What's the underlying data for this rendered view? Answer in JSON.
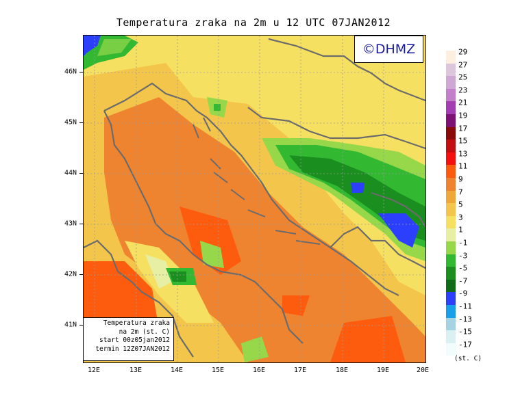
{
  "title": "Temperatura zraka na 2m u 12 UTC 07JAN2012",
  "logo_text": "©DHMZ",
  "info_box": {
    "line1": "Temperatura zraka",
    "line2": "na 2m (st. C)",
    "line3": "start 00z05jan2012",
    "line4": "termin 12Z07JAN2012"
  },
  "axes": {
    "lat_labels": [
      "46N",
      "45N",
      "44N",
      "43N",
      "42N",
      "41N"
    ],
    "lon_labels": [
      "12E",
      "13E",
      "14E",
      "15E",
      "16E",
      "17E",
      "18E",
      "19E",
      "20E"
    ]
  },
  "legend": {
    "labels": [
      "29",
      "27",
      "25",
      "23",
      "21",
      "19",
      "17",
      "15",
      "13",
      "11",
      "9",
      "7",
      "5",
      "3",
      "1",
      "-1",
      "-3",
      "-5",
      "-7",
      "-9",
      "-11",
      "-13",
      "-15",
      "-17"
    ],
    "colors": [
      "#fdeee0",
      "#dcc6dc",
      "#cfa7d4",
      "#c47fcb",
      "#a43db4",
      "#7d1274",
      "#8a0a0a",
      "#c30f0f",
      "#f5100f",
      "#fd5c0e",
      "#ef8430",
      "#f0a73a",
      "#f3c54a",
      "#f6e061",
      "#e7efa4",
      "#96d84a",
      "#33b832",
      "#1a8f1f",
      "#0f6b16",
      "#2b3ffc",
      "#17a0e8",
      "#a5d3e1",
      "#dbf0f2",
      "#f2fcfc"
    ],
    "units": "(st. C)"
  },
  "map_colors": {
    "cold_green": "#1a8f1f",
    "mid_green": "#33b832",
    "light_green": "#96d84a",
    "pale": "#e7efa4",
    "yellow": "#f6e061",
    "gold": "#f3c54a",
    "orange": "#ef8430",
    "red_orange": "#fd5c0e",
    "blue": "#2b3ffc"
  }
}
